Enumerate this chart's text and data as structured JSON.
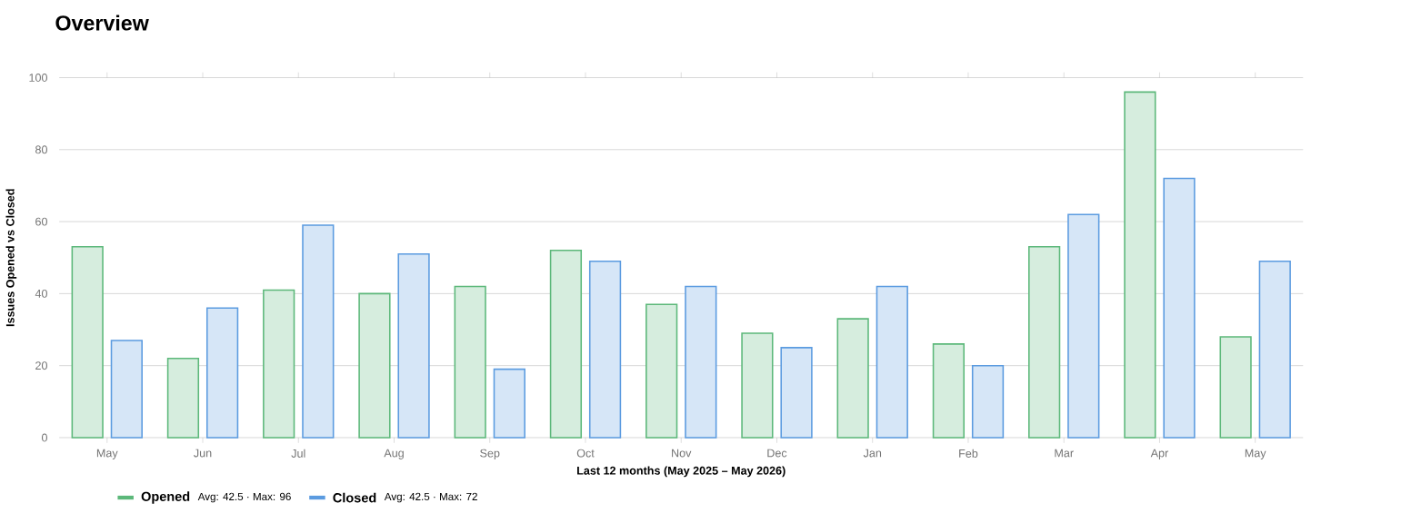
{
  "chart_data": {
    "type": "bar",
    "title": "Overview",
    "xlabel": "Last 12 months (May 2025 – May 2026)",
    "ylabel": "Issues Opened vs Closed",
    "categories": [
      "May",
      "Jun",
      "Jul",
      "Aug",
      "Sep",
      "Oct",
      "Nov",
      "Dec",
      "Jan",
      "Feb",
      "Mar",
      "Apr",
      "May"
    ],
    "series": [
      {
        "name": "Opened",
        "color": "#5cb87a",
        "values": [
          53,
          22,
          41,
          40,
          42,
          52,
          37,
          29,
          33,
          26,
          53,
          96,
          28
        ]
      },
      {
        "name": "Closed",
        "color": "#5b9be0",
        "values": [
          27,
          36,
          59,
          51,
          19,
          49,
          42,
          25,
          42,
          20,
          62,
          72,
          49
        ]
      }
    ],
    "annotations": [
      "Avg: 42.5 · Max: 96",
      "Avg: 42.5 · Max: 72"
    ],
    "ylim": [
      0,
      100
    ],
    "yticks": [
      0,
      20,
      40,
      60,
      80,
      100
    ],
    "grid": "y",
    "legend": "bottom left"
  }
}
